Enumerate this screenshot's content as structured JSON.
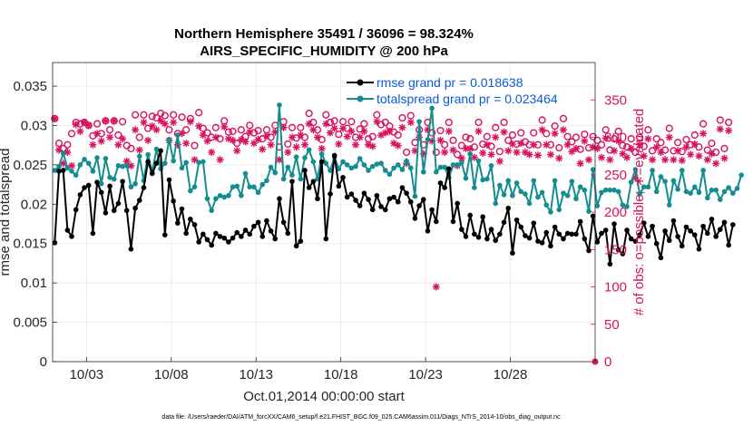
{
  "chart_data": {
    "type": "line",
    "title": "Northern Hemisphere 35491 / 36096 = 98.324%",
    "subtitle": "AIRS_SPECIFIC_HUMIDITY @ 200 hPa",
    "xlabel": "Oct.01,2014 00:00:00 start",
    "ylabel": "rmse and totalspread",
    "ylabel_right": "# of obs: o=possible; ∗=evaluated",
    "xlim": [
      1,
      33
    ],
    "ylim": [
      0,
      0.038
    ],
    "ylim_right": [
      0,
      400
    ],
    "x_ticks": [
      3,
      8,
      13,
      18,
      23,
      28
    ],
    "x_tick_labels": [
      "10/03",
      "10/08",
      "10/13",
      "10/18",
      "10/23",
      "10/28"
    ],
    "y_ticks": [
      "0",
      "0.005",
      "0.01",
      "0.015",
      "0.02",
      "0.025",
      "0.03",
      "0.035"
    ],
    "y_tick_values": [
      0,
      0.005,
      0.01,
      0.015,
      0.02,
      0.025,
      0.03,
      0.035
    ],
    "y_ticks_right": [
      "0",
      "50",
      "100",
      "150",
      "200",
      "250",
      "300",
      "350"
    ],
    "y_tick_values_right": [
      0,
      50,
      100,
      150,
      200,
      250,
      300,
      350
    ],
    "grid": true,
    "legend_position": "top-right",
    "time_step_days": 0.25,
    "series": [
      {
        "name": "rmse grand pr = 0.018638",
        "color": "#000000",
        "values": [
          0.0151,
          0.0242,
          0.0243,
          0.0167,
          0.0159,
          0.0193,
          0.0212,
          0.0221,
          0.0224,
          0.0163,
          0.0228,
          0.0215,
          0.0189,
          0.0223,
          0.0192,
          0.0201,
          0.0229,
          0.0192,
          0.0143,
          0.0195,
          0.0205,
          0.0221,
          0.0254,
          0.0239,
          0.0252,
          0.0268,
          0.0161,
          0.0231,
          0.0204,
          0.0176,
          0.0194,
          0.0163,
          0.0181,
          0.0174,
          0.0152,
          0.0162,
          0.0155,
          0.0148,
          0.0163,
          0.0159,
          0.0157,
          0.0152,
          0.0157,
          0.0164,
          0.0159,
          0.0167,
          0.0162,
          0.0172,
          0.0177,
          0.0159,
          0.0179,
          0.0166,
          0.0156,
          0.0207,
          0.0177,
          0.0163,
          0.0229,
          0.0147,
          0.0153,
          0.0243,
          0.0221,
          0.0229,
          0.0207,
          0.0254,
          0.0156,
          0.0213,
          0.0262,
          0.0223,
          0.0234,
          0.0209,
          0.0213,
          0.0205,
          0.0198,
          0.0214,
          0.0206,
          0.0193,
          0.0211,
          0.0197,
          0.0193,
          0.0207,
          0.0209,
          0.0203,
          0.0221,
          0.0214,
          0.0203,
          0.0182,
          0.0198,
          0.0206,
          0.0166,
          0.0193,
          0.0178,
          0.0227,
          0.0221,
          0.0245,
          0.0178,
          0.0201,
          0.0168,
          0.0159,
          0.0186,
          0.0162,
          0.0158,
          0.0184,
          0.0156,
          0.0168,
          0.0154,
          0.0162,
          0.0177,
          0.0195,
          0.0138,
          0.018,
          0.0171,
          0.016,
          0.0157,
          0.0176,
          0.0153,
          0.0151,
          0.0164,
          0.0147,
          0.0171,
          0.0162,
          0.0156,
          0.0163,
          0.0162,
          0.0162,
          0.0178,
          0.0156,
          0.0141,
          0.0185,
          0.0152,
          0.0163,
          0.0167,
          0.0124,
          0.0175,
          0.0142,
          0.0137,
          0.0167,
          0.0156,
          0.0153,
          0.0161,
          0.0176,
          0.0159,
          0.0172,
          0.015,
          0.0132,
          0.0166,
          0.0154,
          0.0179,
          0.0159,
          0.0147,
          0.0171,
          0.0166,
          0.0161,
          0.0143,
          0.0172,
          0.0163,
          0.0181,
          0.0159,
          0.0168,
          0.0177,
          0.0148,
          0.0174
        ]
      },
      {
        "name": "totalspread grand pr = 0.023464",
        "color": "#138d90",
        "values": [
          0.0243,
          0.0248,
          0.0265,
          0.0246,
          0.0242,
          0.0237,
          0.025,
          0.0257,
          0.0252,
          0.0242,
          0.0259,
          0.0226,
          0.0258,
          0.0234,
          0.0232,
          0.0249,
          0.0248,
          0.0249,
          0.0222,
          0.0226,
          0.0261,
          0.023,
          0.0263,
          0.0241,
          0.027,
          0.0245,
          0.0252,
          0.0282,
          0.0255,
          0.0288,
          0.0246,
          0.0253,
          0.0217,
          0.0222,
          0.0253,
          0.0254,
          0.0207,
          0.0192,
          0.0207,
          0.0211,
          0.0209,
          0.0211,
          0.0222,
          0.0223,
          0.0211,
          0.0239,
          0.0222,
          0.0222,
          0.0215,
          0.0225,
          0.023,
          0.0247,
          0.024,
          0.0326,
          0.0232,
          0.0247,
          0.0237,
          0.026,
          0.0232,
          0.0259,
          0.0269,
          0.0254,
          0.0232,
          0.0264,
          0.0252,
          0.0243,
          0.026,
          0.0245,
          0.0254,
          0.025,
          0.0246,
          0.0248,
          0.0258,
          0.025,
          0.0243,
          0.0248,
          0.0251,
          0.0252,
          0.0243,
          0.0238,
          0.0246,
          0.025,
          0.0244,
          0.0255,
          0.0246,
          0.021,
          0.0305,
          0.0241,
          0.0282,
          0.0322,
          0.0241,
          0.0247,
          0.0247,
          0.0234,
          0.025,
          0.025,
          0.0253,
          0.0233,
          0.0264,
          0.0221,
          0.0255,
          0.0231,
          0.0232,
          0.0249,
          0.0201,
          0.0224,
          0.0212,
          0.023,
          0.0211,
          0.0227,
          0.0216,
          0.0213,
          0.0201,
          0.023,
          0.0209,
          0.0215,
          0.0199,
          0.019,
          0.023,
          0.0193,
          0.0214,
          0.0211,
          0.0229,
          0.0207,
          0.0222,
          0.0218,
          0.0191,
          0.0244,
          0.0198,
          0.0215,
          0.0218,
          0.0218,
          0.0218,
          0.0216,
          0.0199,
          0.0197,
          0.0228,
          0.0244,
          0.0213,
          0.0222,
          0.0222,
          0.0243,
          0.0216,
          0.0235,
          0.0229,
          0.0199,
          0.023,
          0.0219,
          0.0243,
          0.0216,
          0.0214,
          0.0222,
          0.0215,
          0.0243,
          0.0208,
          0.0218,
          0.0218,
          0.0206,
          0.0216,
          0.0221,
          0.0214,
          0.022,
          0.0237
        ]
      }
    ],
    "obs_series": [
      {
        "name": "possible",
        "marker": "o",
        "color": "#d8125d",
        "values": [
          325,
          292,
          285,
          290,
          305,
          320,
          318,
          320,
          316,
          302,
          318,
          305,
          322,
          310,
          322,
          303,
          321,
          289,
          285,
          330,
          300,
          330,
          312,
          328,
          326,
          332,
          329,
          310,
          330,
          305,
          327,
          310,
          325,
          289,
          333,
          312,
          306,
          300,
          313,
          298,
          322,
          307,
          308,
          292,
          310,
          301,
          316,
          306,
          309,
          298,
          310,
          300,
          316,
          287,
          321,
          291,
          313,
          299,
          313,
          300,
          332,
          320,
          310,
          297,
          330,
          320,
          322,
          304,
          321,
          312,
          321,
          300,
          311,
          318,
          298,
          301,
          330,
          317,
          320,
          315,
          307,
          303,
          326,
          280,
          329,
          293,
          310,
          290,
          320,
          306,
          280,
          309,
          290,
          320,
          296,
          277,
          289,
          300,
          298,
          287,
          320,
          291,
          301,
          288,
          313,
          281,
          320,
          296,
          303,
          291,
          306,
          294,
          290,
          306,
          290,
          323,
          305,
          290,
          315,
          286,
          325,
          301,
          294,
          300,
          284,
          304,
          286,
          301,
          296,
          290,
          310,
          283,
          298,
          308,
          289,
          287,
          298,
          280,
          300,
          288,
          310,
          282,
          298,
          293,
          283,
          312,
          282,
          293,
          281,
          297,
          290,
          303,
          287,
          318,
          283,
          292,
          280,
          323,
          285,
          320
        ]
      },
      {
        "name": "evaluated",
        "marker": "*",
        "color": "#d8125d",
        "values": [
          325,
          283,
          265,
          280,
          262,
          317,
          308,
          320,
          316,
          290,
          305,
          295,
          322,
          300,
          322,
          290,
          298,
          268,
          262,
          310,
          283,
          320,
          296,
          315,
          310,
          322,
          318,
          296,
          320,
          290,
          305,
          292,
          321,
          270,
          315,
          303,
          295,
          280,
          300,
          270,
          314,
          298,
          296,
          282,
          297,
          294,
          307,
          292,
          297,
          284,
          302,
          290,
          307,
          270,
          313,
          280,
          300,
          287,
          303,
          290,
          318,
          310,
          300,
          285,
          318,
          306,
          312,
          291,
          312,
          301,
          308,
          290,
          300,
          308,
          290,
          288,
          321,
          303,
          306,
          308,
          292,
          289,
          313,
          265,
          320,
          282,
          300,
          278,
          310,
          295,
          100,
          296,
          280,
          308,
          283,
          262,
          272,
          285,
          285,
          273,
          308,
          279,
          290,
          277,
          300,
          268,
          307,
          282,
          291,
          280,
          292,
          280,
          277,
          290,
          276,
          310,
          290,
          277,
          305,
          272,
          310,
          290,
          281,
          285,
          265,
          295,
          270,
          287,
          285,
          273,
          299,
          270,
          282,
          295,
          278,
          273,
          285,
          246,
          290,
          275,
          298,
          270,
          287,
          280,
          270,
          300,
          270,
          282,
          269,
          287,
          277,
          291,
          275,
          305,
          270,
          278,
          265,
          311,
          272,
          309
        ]
      }
    ]
  },
  "footer": "data file: /Users/raeder/DAI/ATM_forcXX/CAM6_setup/f.e21.FHIST_BGC.f09_025.CAM6assim.011/Diags_NTrS_2014-10/obs_diag_output.nc"
}
